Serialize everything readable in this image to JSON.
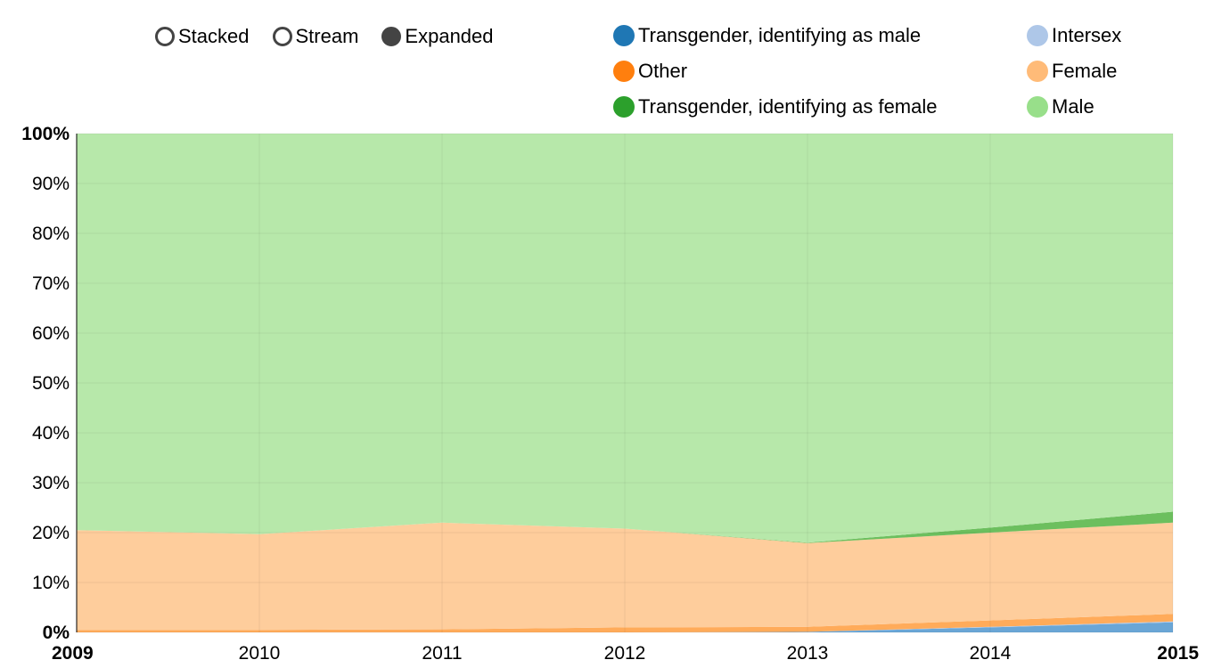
{
  "controls": {
    "stacked": "Stacked",
    "stream": "Stream",
    "expanded": "Expanded",
    "selected": "expanded"
  },
  "colors": {
    "trans_male": "#1f77b4",
    "trans_male_fill": "#6aa6d6",
    "intersex": "#aec7e8",
    "other": "#ff7f0e",
    "other_fill": "#ffab5a",
    "female": "#ffbb78",
    "female_fill": "#fecd9c",
    "trans_female": "#2ca02c",
    "trans_female_fill": "#6cbf5e",
    "male": "#98df8a",
    "male_fill": "#b7e8aa",
    "grid": "#d8e8d4"
  },
  "chart_data": {
    "type": "area",
    "mode": "expanded",
    "x": [
      2009,
      2010,
      2011,
      2012,
      2013,
      2014,
      2015
    ],
    "ylim": [
      0,
      100
    ],
    "yticks": [
      "0%",
      "10%",
      "20%",
      "30%",
      "40%",
      "50%",
      "60%",
      "70%",
      "80%",
      "90%",
      "100%"
    ],
    "xticks": [
      "2009",
      "2010",
      "2011",
      "2012",
      "2013",
      "2014",
      "2015"
    ],
    "legend_position": "top-right",
    "series": [
      {
        "name": "Transgender, identifying as male",
        "values": [
          0.0,
          0.0,
          0.0,
          0.0,
          0.1,
          1.0,
          2.0
        ]
      },
      {
        "name": "Intersex",
        "values": [
          0.0,
          0.0,
          0.0,
          0.0,
          0.0,
          0.1,
          0.2
        ]
      },
      {
        "name": "Other",
        "values": [
          0.5,
          0.5,
          0.6,
          1.0,
          1.0,
          1.3,
          1.5
        ]
      },
      {
        "name": "Female",
        "values": [
          20.0,
          19.2,
          21.4,
          19.8,
          16.8,
          17.6,
          18.3
        ]
      },
      {
        "name": "Transgender, identifying as female",
        "values": [
          0.0,
          0.0,
          0.0,
          0.0,
          0.1,
          1.0,
          2.2
        ]
      },
      {
        "name": "Male",
        "values": [
          79.5,
          80.3,
          78.0,
          79.2,
          82.0,
          79.0,
          75.8
        ]
      }
    ]
  }
}
